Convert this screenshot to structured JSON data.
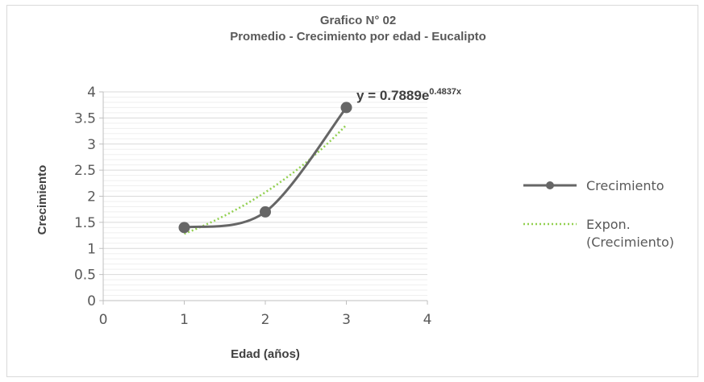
{
  "chart_data": {
    "type": "line",
    "title": "Grafico N° 02",
    "subtitle": "Promedio - Crecimiento por edad - Eucalipto",
    "xlabel": "Edad (años)",
    "ylabel": "Crecimiento",
    "xlim": [
      0,
      4
    ],
    "ylim": [
      0,
      4
    ],
    "x_ticks": [
      "0",
      "1",
      "2",
      "3",
      "4"
    ],
    "y_ticks": [
      "0",
      "0.5",
      "1",
      "1.5",
      "2",
      "2.5",
      "3",
      "3.5",
      "4"
    ],
    "grid": true,
    "legend_position": "right",
    "series": [
      {
        "name": "Crecimiento",
        "x": [
          1,
          2,
          3
        ],
        "values": [
          1.4,
          1.7,
          3.7
        ],
        "color": "#666666",
        "style": "smooth-line-with-markers"
      },
      {
        "name": "Expon.",
        "name_line2": "(Crecimiento)",
        "type": "trendline-exponential",
        "a": 0.7889,
        "b": 0.4837,
        "x_range": [
          1,
          3
        ],
        "color": "#92d050",
        "style": "dotted"
      }
    ],
    "annotation": {
      "text": "y = 0.7889e",
      "superscript": "0.4837x"
    }
  }
}
